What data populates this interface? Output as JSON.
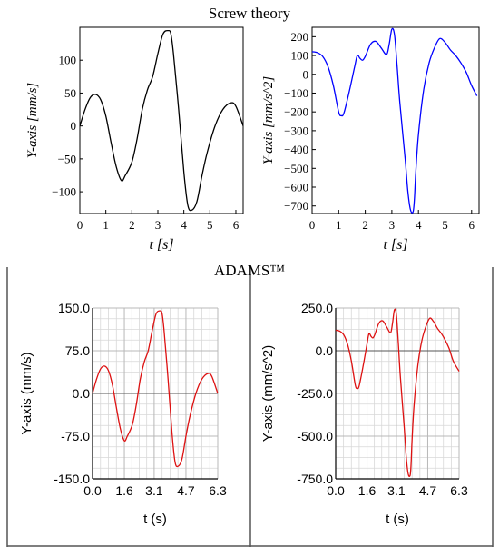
{
  "top_title": "Screw theory",
  "bottom_title": "ADAMS™",
  "chart_data": [
    {
      "type": "line",
      "group": "Screw theory",
      "xlabel": "t [s]",
      "ylabel": "Y-axis [mm/s]",
      "xlim": [
        0,
        6.28
      ],
      "ylim": [
        -133,
        150
      ],
      "xticks": [
        0,
        1,
        2,
        3,
        4,
        5,
        6
      ],
      "yticks": [
        -100,
        -50,
        0,
        50,
        100
      ],
      "grid": false,
      "color": "#000000",
      "series": [
        {
          "x": [
            0,
            0.2,
            0.4,
            0.6,
            0.8,
            1.0,
            1.2,
            1.4,
            1.6,
            1.75,
            2.0,
            2.2,
            2.4,
            2.6,
            2.8,
            3.0,
            3.2,
            3.4,
            3.5,
            3.6,
            3.8,
            4.0,
            4.15,
            4.3,
            4.5,
            4.7,
            4.9,
            5.2,
            5.5,
            5.8,
            6.0,
            6.28
          ],
          "y": [
            0,
            25,
            43,
            48,
            40,
            15,
            -25,
            -62,
            -83,
            -75,
            -55,
            -20,
            25,
            55,
            75,
            110,
            140,
            145,
            140,
            110,
            25,
            -70,
            -120,
            -128,
            -115,
            -75,
            -40,
            0,
            25,
            35,
            30,
            0
          ]
        }
      ]
    },
    {
      "type": "line",
      "group": "Screw theory",
      "xlabel": "t [s]",
      "ylabel": "Y-axis [mm/s^2]",
      "xlim": [
        0,
        6.28
      ],
      "ylim": [
        -740,
        250
      ],
      "xticks": [
        0,
        1,
        2,
        3,
        4,
        5,
        6
      ],
      "yticks": [
        200,
        100,
        0,
        -100,
        -200,
        -300,
        -400,
        -500,
        -600,
        -700
      ],
      "grid": false,
      "color": "#0000ff",
      "series": [
        {
          "x": [
            0,
            0.2,
            0.4,
            0.6,
            0.8,
            1.0,
            1.1,
            1.2,
            1.4,
            1.6,
            1.7,
            1.8,
            1.9,
            2.0,
            2.2,
            2.4,
            2.6,
            2.8,
            2.9,
            3.0,
            3.1,
            3.2,
            3.3,
            3.5,
            3.6,
            3.7,
            3.8,
            3.85,
            3.9,
            4.0,
            4.2,
            4.4,
            4.6,
            4.8,
            5.0,
            5.2,
            5.4,
            5.6,
            5.8,
            6.0,
            6.2
          ],
          "y": [
            120,
            115,
            95,
            40,
            -60,
            -200,
            -220,
            -205,
            -90,
            40,
            100,
            85,
            75,
            95,
            160,
            175,
            140,
            105,
            160,
            240,
            210,
            40,
            -150,
            -450,
            -620,
            -720,
            -730,
            -660,
            -520,
            -320,
            -80,
            60,
            140,
            190,
            170,
            130,
            100,
            60,
            10,
            -60,
            -115
          ]
        }
      ]
    },
    {
      "type": "line",
      "group": "ADAMS™",
      "xlabel": "t (s)",
      "ylabel": "Y-axis (mm/s)",
      "xlim": [
        0,
        6.3
      ],
      "ylim": [
        -150,
        150
      ],
      "xticks": [
        "0.0",
        "1.6",
        "3.1",
        "4.7",
        "6.3"
      ],
      "yticks": [
        "150.0",
        "75.0",
        "0.0",
        "-75.0",
        "-150.0"
      ],
      "grid": true,
      "color": "#dd1111",
      "series": [
        {
          "x": [
            0,
            0.2,
            0.4,
            0.6,
            0.8,
            1.0,
            1.2,
            1.4,
            1.6,
            1.75,
            2.0,
            2.2,
            2.4,
            2.6,
            2.8,
            3.0,
            3.2,
            3.4,
            3.5,
            3.6,
            3.8,
            4.0,
            4.15,
            4.3,
            4.5,
            4.7,
            4.9,
            5.2,
            5.5,
            5.8,
            6.0,
            6.3
          ],
          "y": [
            0,
            25,
            43,
            48,
            40,
            15,
            -25,
            -62,
            -83,
            -75,
            -55,
            -20,
            25,
            55,
            75,
            110,
            140,
            145,
            140,
            110,
            25,
            -70,
            -120,
            -128,
            -115,
            -75,
            -40,
            0,
            25,
            35,
            30,
            0
          ]
        }
      ]
    },
    {
      "type": "line",
      "group": "ADAMS™",
      "xlabel": "t (s)",
      "ylabel": "Y-axis (mm/s^2)",
      "xlim": [
        0,
        6.3
      ],
      "ylim": [
        -750,
        250
      ],
      "xticks": [
        "0.0",
        "1.6",
        "3.1",
        "4.7",
        "6.3"
      ],
      "yticks": [
        "250.0",
        "0.0",
        "-250.0",
        "-500.0",
        "-750.0"
      ],
      "grid": true,
      "color": "#dd1111",
      "series": [
        {
          "x": [
            0,
            0.2,
            0.4,
            0.6,
            0.8,
            1.0,
            1.1,
            1.2,
            1.4,
            1.6,
            1.7,
            1.8,
            1.9,
            2.0,
            2.2,
            2.4,
            2.6,
            2.8,
            2.9,
            3.0,
            3.1,
            3.2,
            3.3,
            3.5,
            3.6,
            3.7,
            3.8,
            3.85,
            3.9,
            4.0,
            4.2,
            4.4,
            4.6,
            4.8,
            5.0,
            5.2,
            5.4,
            5.6,
            5.8,
            6.0,
            6.3
          ],
          "y": [
            120,
            115,
            95,
            40,
            -60,
            -200,
            -220,
            -205,
            -90,
            40,
            100,
            85,
            75,
            95,
            160,
            175,
            140,
            105,
            160,
            240,
            210,
            40,
            -150,
            -450,
            -620,
            -720,
            -730,
            -660,
            -520,
            -320,
            -80,
            60,
            140,
            190,
            170,
            130,
            100,
            60,
            10,
            -60,
            -120
          ]
        }
      ]
    }
  ]
}
